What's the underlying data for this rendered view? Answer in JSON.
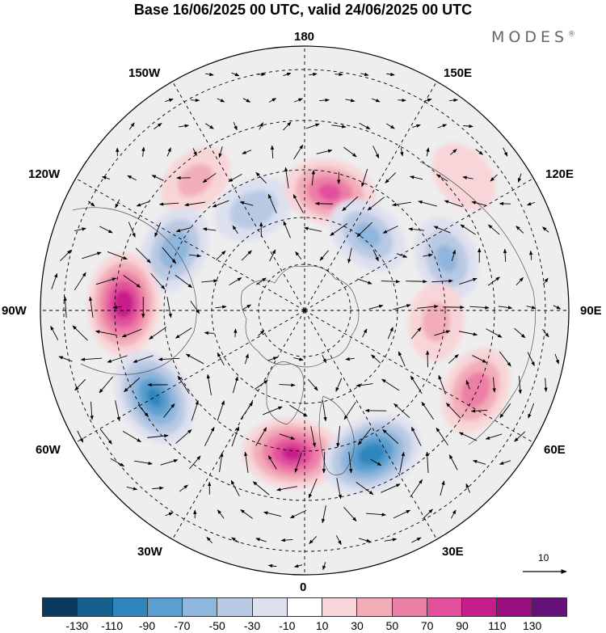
{
  "title": "Base 16/06/2025 00 UTC, valid 24/06/2025 00 UTC",
  "brand": "MODES",
  "brand_mark": "®",
  "longitude_labels": {
    "lon_180": "180",
    "lon_150w": "150W",
    "lon_150e": "150E",
    "lon_120w": "120W",
    "lon_120e": "120E",
    "lon_90w": "90W",
    "lon_90e": "90E",
    "lon_60w": "60W",
    "lon_60e": "60E",
    "lon_30w": "30W",
    "lon_30e": "30E",
    "lon_0": "0"
  },
  "reference_vector": {
    "label": "10",
    "value": 10
  },
  "colorbar": {
    "colors": [
      "#0b3a5e",
      "#15608f",
      "#2f86be",
      "#5a9fcf",
      "#8fb6dc",
      "#b9c9e3",
      "#dde0ef",
      "#ffffff",
      "#f8d5d8",
      "#f2adb9",
      "#ec7fa6",
      "#e2509c",
      "#c71c8a",
      "#9a0d81",
      "#64117a"
    ],
    "tick_labels": [
      "-130",
      "-110",
      "-90",
      "-70",
      "-50",
      "-30",
      "-10",
      "10",
      "30",
      "50",
      "70",
      "90",
      "110",
      "130"
    ]
  },
  "anomaly_centers": [
    {
      "lon": -153,
      "lat": 60,
      "value": -40
    },
    {
      "lon": 168,
      "lat": 58,
      "value": 70
    },
    {
      "lon": 140,
      "lat": 64,
      "value": -50
    },
    {
      "lon": 110,
      "lat": 50,
      "value": -50
    },
    {
      "lon": -140,
      "lat": 45,
      "value": 30
    },
    {
      "lon": -115,
      "lat": 52,
      "value": -60
    },
    {
      "lon": -92,
      "lat": 42,
      "value": 100
    },
    {
      "lon": -60,
      "lat": 44,
      "value": -90
    },
    {
      "lon": -5,
      "lat": 52,
      "value": 90
    },
    {
      "lon": 25,
      "lat": 48,
      "value": -100
    },
    {
      "lon": 65,
      "lat": 40,
      "value": 60
    },
    {
      "lon": 85,
      "lat": 55,
      "value": 30
    },
    {
      "lon": 130,
      "lat": 35,
      "value": 20
    }
  ]
}
